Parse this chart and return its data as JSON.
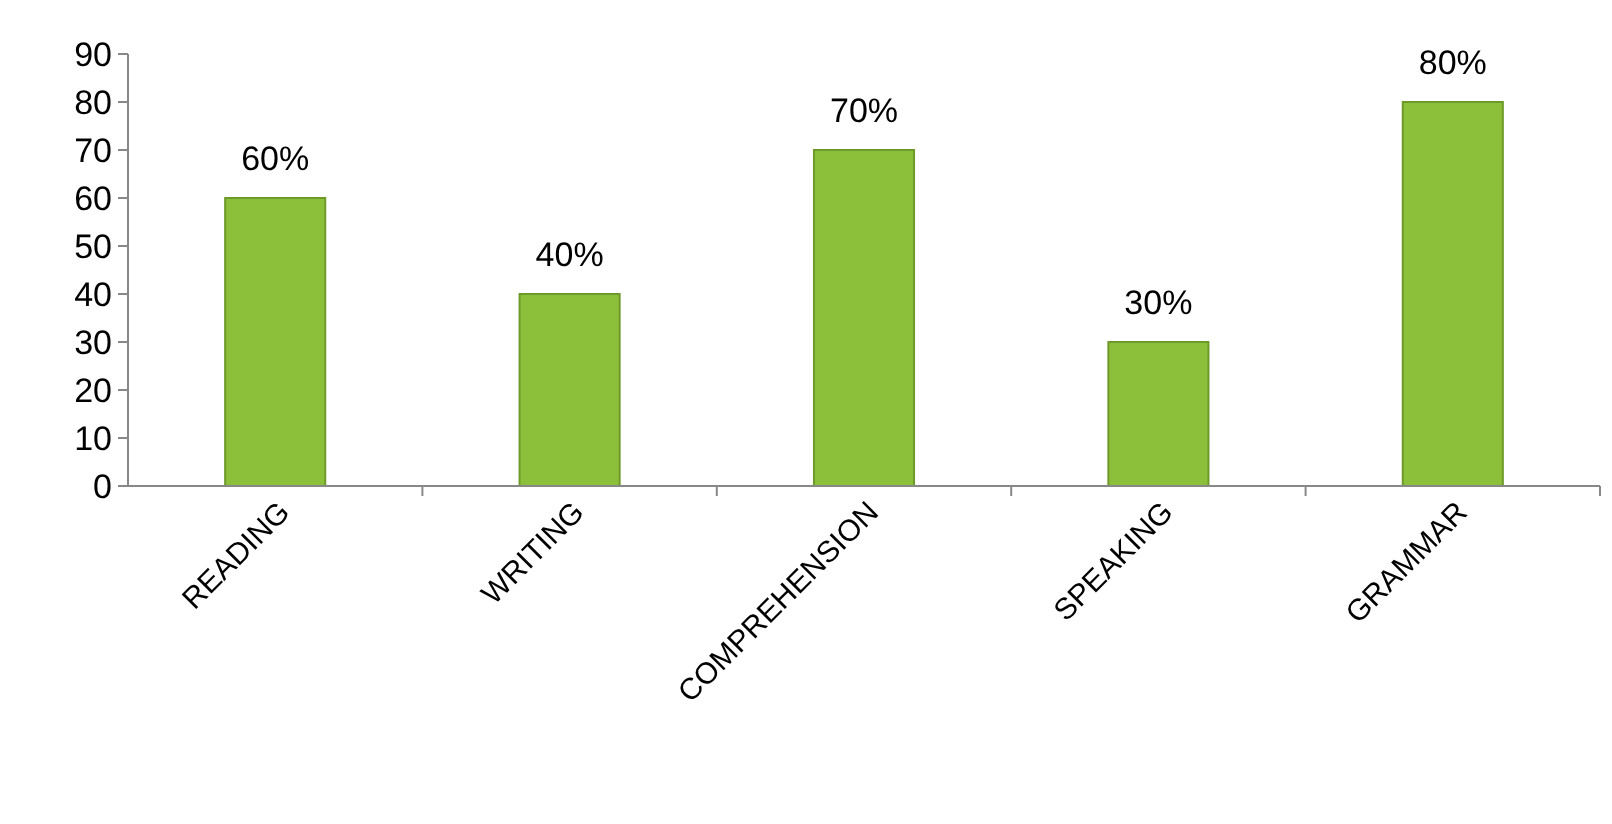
{
  "chart_data": {
    "type": "bar",
    "categories": [
      "READING",
      "WRITING",
      "COMPREHENSION",
      "SPEAKING",
      "GRAMMAR"
    ],
    "values": [
      60,
      40,
      70,
      30,
      80
    ],
    "value_labels": [
      "60%",
      "40%",
      "70%",
      "30%",
      "80%"
    ],
    "color": "#8dc03a",
    "ylim": [
      0,
      90
    ],
    "yticks": [
      0,
      10,
      20,
      30,
      40,
      50,
      60,
      70,
      80,
      90
    ],
    "grid": false
  }
}
